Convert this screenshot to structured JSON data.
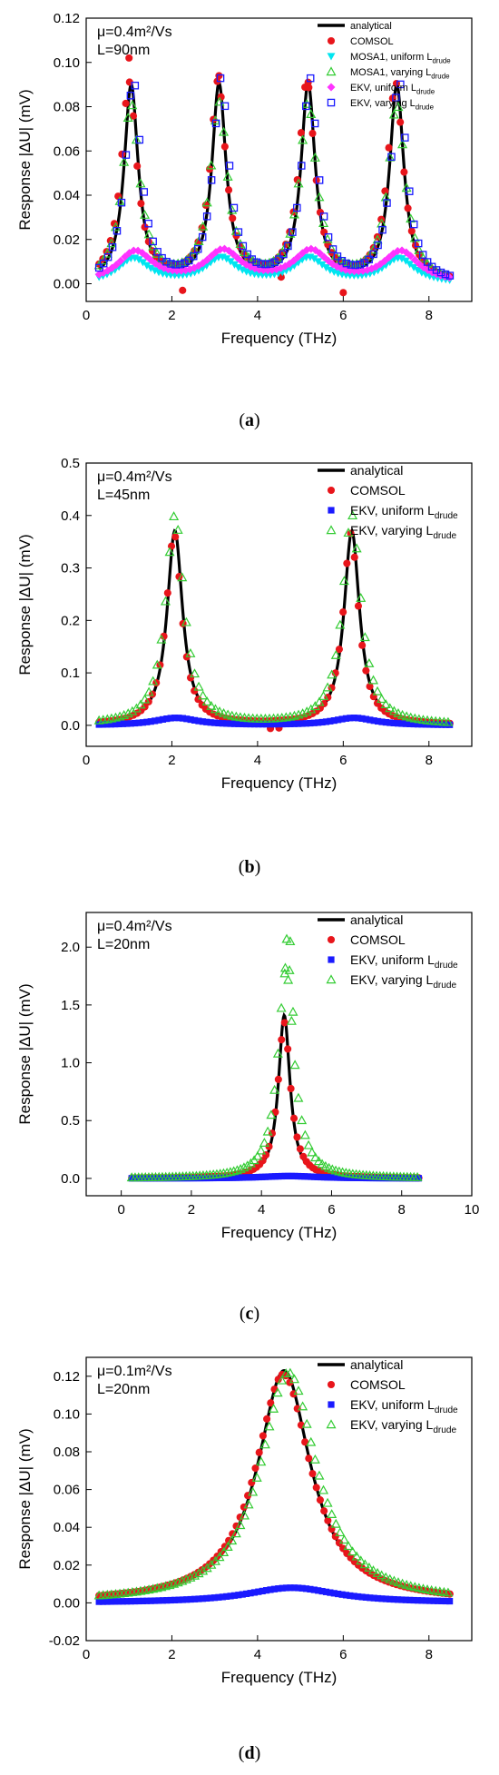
{
  "colors": {
    "analytical": "#000000",
    "comsol": "#e8151b",
    "mosa1_uniform": "#00e5f0",
    "mosa1_varying": "#33cc33",
    "ekv_uniform_a": "#ff33ff",
    "ekv_varying_a": "#1a1aff",
    "ekv_uniform": "#1a1aff",
    "ekv_varying": "#33cc33"
  },
  "chart_data": [
    {
      "id": "a",
      "type": "scatter",
      "caption_open": "(",
      "caption_letter": "a",
      "caption_close": ")",
      "params_line1": "μ=0.4m²/Vs",
      "params_line2": "L=90nm",
      "xlabel": "Frequency (THz)",
      "ylabel": "Response |ΔU| (mV)",
      "xlim": [
        0,
        9
      ],
      "ylim": [
        -0.008,
        0.12
      ],
      "xticks": [
        0,
        2,
        4,
        6,
        8
      ],
      "yticks": [
        0.0,
        0.02,
        0.04,
        0.06,
        0.08,
        0.1,
        0.12
      ],
      "ytick_decimals": 2,
      "grid": false,
      "legend_position": "top-right",
      "legend": [
        {
          "label": "analytical",
          "sub": "",
          "marker": "line",
          "color": "#000000"
        },
        {
          "label": "COMSOL",
          "sub": "",
          "marker": "circle",
          "color": "#e8151b"
        },
        {
          "label": "MOSA1, uniform L",
          "sub": "drude",
          "marker": "triangle-down",
          "color": "#00e5f0"
        },
        {
          "label": "MOSA1, varying L",
          "sub": "drude",
          "marker": "triangle-open",
          "color": "#33cc33"
        },
        {
          "label": "EKV, uniform L",
          "sub": "drude",
          "marker": "diamond",
          "color": "#ff33ff"
        },
        {
          "label": "EKV, varying L",
          "sub": "drude",
          "marker": "square-open",
          "color": "#1a1aff"
        }
      ],
      "series": [
        {
          "name": "analytical",
          "marker": "line",
          "color": "#000000",
          "peaks": [
            1.05,
            3.1,
            5.18,
            7.25
          ],
          "height": 0.089,
          "width": 0.2,
          "x": [
            0.3,
            8.5
          ]
        },
        {
          "name": "COMSOL",
          "marker": "circle",
          "color": "#e8151b",
          "peaks": [
            1.0,
            3.08,
            5.15,
            7.22
          ],
          "height": 0.09,
          "width": 0.22,
          "x": [
            0.3,
            8.5
          ],
          "extra": [
            [
              1.0,
              0.102
            ],
            [
              3.1,
              0.094
            ],
            [
              5.18,
              0.091
            ],
            [
              2.1,
              0.005
            ],
            [
              2.25,
              -0.003
            ],
            [
              6.0,
              -0.004
            ],
            [
              4.55,
              0.003
            ]
          ]
        },
        {
          "name": "MOSA1, uniform L drude",
          "marker": "triangle-down",
          "color": "#00e5f0",
          "peaks": [
            1.1,
            3.15,
            5.2,
            7.3
          ],
          "height": 0.011,
          "width": 0.45,
          "x": [
            0.3,
            8.5
          ]
        },
        {
          "name": "MOSA1, varying L drude",
          "marker": "triangle-open",
          "color": "#33cc33",
          "peaks": [
            1.05,
            3.1,
            5.18,
            7.25
          ],
          "height": 0.08,
          "width": 0.24,
          "x": [
            0.3,
            8.5
          ]
        },
        {
          "name": "EKV, uniform L drude",
          "marker": "diamond",
          "color": "#ff33ff",
          "peaks": [
            1.15,
            3.2,
            5.25,
            7.35
          ],
          "height": 0.014,
          "width": 0.5,
          "x": [
            0.3,
            8.5
          ]
        },
        {
          "name": "EKV, varying L drude",
          "marker": "square-open",
          "color": "#1a1aff",
          "peaks": [
            1.1,
            3.15,
            5.22,
            7.3
          ],
          "height": 0.091,
          "width": 0.22,
          "x": [
            0.3,
            8.5
          ]
        }
      ]
    },
    {
      "id": "b",
      "type": "scatter",
      "caption_open": "(",
      "caption_letter": "b",
      "caption_close": ")",
      "params_line1": "μ=0.4m²/Vs",
      "params_line2": "L=45nm",
      "xlabel": "Frequency (THz)",
      "ylabel": "Response |ΔU| (mV)",
      "xlim": [
        0,
        9
      ],
      "ylim": [
        -0.04,
        0.5
      ],
      "xticks": [
        0,
        2,
        4,
        6,
        8
      ],
      "yticks": [
        0.0,
        0.1,
        0.2,
        0.3,
        0.4,
        0.5
      ],
      "ytick_decimals": 1,
      "grid": false,
      "legend_position": "top-right",
      "legend": [
        {
          "label": "analytical",
          "sub": "",
          "marker": "line",
          "color": "#000000"
        },
        {
          "label": "COMSOL",
          "sub": "",
          "marker": "circle",
          "color": "#e8151b"
        },
        {
          "label": "EKV, uniform L",
          "sub": "drude",
          "marker": "square",
          "color": "#1a1aff"
        },
        {
          "label": "EKV, varying L",
          "sub": "drude",
          "marker": "triangle-open",
          "color": "#33cc33"
        }
      ],
      "series": [
        {
          "name": "analytical",
          "marker": "line",
          "color": "#000000",
          "peaks": [
            2.07,
            6.2
          ],
          "height": 0.37,
          "width": 0.22,
          "x": [
            0.3,
            8.5
          ]
        },
        {
          "name": "COMSOL",
          "marker": "circle",
          "color": "#e8151b",
          "peaks": [
            2.05,
            6.18
          ],
          "height": 0.365,
          "width": 0.22,
          "x": [
            0.3,
            8.5
          ],
          "extra": [
            [
              4.3,
              -0.006
            ],
            [
              4.5,
              -0.005
            ]
          ]
        },
        {
          "name": "EKV, uniform L drude",
          "marker": "square",
          "color": "#1a1aff",
          "peaks": [
            2.1,
            6.25
          ],
          "height": 0.014,
          "width": 0.6,
          "x": [
            0.3,
            8.5
          ]
        },
        {
          "name": "EKV, varying L drude",
          "marker": "triangle-open",
          "color": "#33cc33",
          "peaks": [
            2.07,
            6.2
          ],
          "height": 0.4,
          "width": 0.26,
          "x": [
            0.3,
            8.5
          ]
        }
      ]
    },
    {
      "id": "c",
      "type": "scatter",
      "caption_open": "(",
      "caption_letter": "c",
      "caption_close": ")",
      "params_line1": "μ=0.4m²/Vs",
      "params_line2": "L=20nm",
      "xlabel": "Frequency (THz)",
      "ylabel": "Response |ΔU| (mV)",
      "xlim": [
        -1,
        10
      ],
      "ylim": [
        -0.15,
        2.3
      ],
      "xticks": [
        0,
        2,
        4,
        6,
        8,
        10
      ],
      "yticks": [
        0.0,
        0.5,
        1.0,
        1.5,
        2.0
      ],
      "ytick_decimals": 1,
      "grid": false,
      "legend_position": "top-right",
      "legend": [
        {
          "label": "analytical",
          "sub": "",
          "marker": "line",
          "color": "#000000"
        },
        {
          "label": "COMSOL",
          "sub": "",
          "marker": "circle",
          "color": "#e8151b"
        },
        {
          "label": "EKV, uniform L",
          "sub": "drude",
          "marker": "square",
          "color": "#1a1aff"
        },
        {
          "label": "EKV, varying L",
          "sub": "drude",
          "marker": "triangle-open",
          "color": "#33cc33"
        }
      ],
      "series": [
        {
          "name": "analytical",
          "marker": "line",
          "color": "#000000",
          "peaks": [
            4.65
          ],
          "height": 1.41,
          "width": 0.2,
          "x": [
            0.3,
            8.5
          ]
        },
        {
          "name": "COMSOL",
          "marker": "circle",
          "color": "#e8151b",
          "peaks": [
            4.65
          ],
          "height": 1.35,
          "width": 0.22,
          "x": [
            0.3,
            8.5
          ]
        },
        {
          "name": "EKV, uniform L drude",
          "marker": "square",
          "color": "#1a1aff",
          "peaks": [
            4.8
          ],
          "height": 0.02,
          "width": 1.0,
          "x": [
            0.3,
            8.5
          ]
        },
        {
          "name": "EKV, varying L drude",
          "marker": "triangle-open",
          "color": "#33cc33",
          "peaks": [
            4.7
          ],
          "height": 1.8,
          "width": 0.28,
          "x": [
            0.3,
            8.5
          ],
          "extra": [
            [
              4.72,
              2.07
            ],
            [
              4.82,
              2.05
            ],
            [
              4.68,
              1.82
            ],
            [
              4.8,
              1.8
            ],
            [
              4.9,
              1.44
            ]
          ]
        }
      ]
    },
    {
      "id": "d",
      "type": "scatter",
      "caption_open": "(",
      "caption_letter": "d",
      "caption_close": ")",
      "params_line1": "μ=0.1m²/Vs",
      "params_line2": "L=20nm",
      "xlabel": "Frequency (THz)",
      "ylabel": "Response |ΔU| (mV)",
      "xlim": [
        0,
        9
      ],
      "ylim": [
        -0.02,
        0.13
      ],
      "xticks": [
        0,
        2,
        4,
        6,
        8
      ],
      "yticks": [
        -0.02,
        0.0,
        0.02,
        0.04,
        0.06,
        0.08,
        0.1,
        0.12
      ],
      "ytick_decimals": 2,
      "grid": false,
      "legend_position": "top-right",
      "legend": [
        {
          "label": "analytical",
          "sub": "",
          "marker": "line",
          "color": "#000000"
        },
        {
          "label": "COMSOL",
          "sub": "",
          "marker": "circle",
          "color": "#e8151b"
        },
        {
          "label": "EKV, uniform L",
          "sub": "drude",
          "marker": "square",
          "color": "#1a1aff"
        },
        {
          "label": "EKV, varying L",
          "sub": "drude",
          "marker": "triangle-open",
          "color": "#33cc33"
        }
      ],
      "series": [
        {
          "name": "analytical",
          "marker": "line",
          "color": "#000000",
          "peaks": [
            4.62
          ],
          "height": 0.123,
          "width": 0.75,
          "x": [
            0.3,
            8.5
          ]
        },
        {
          "name": "COMSOL",
          "marker": "circle",
          "color": "#e8151b",
          "peaks": [
            4.6
          ],
          "height": 0.121,
          "width": 0.78,
          "x": [
            0.3,
            8.5
          ]
        },
        {
          "name": "EKV, uniform L drude",
          "marker": "square",
          "color": "#1a1aff",
          "peaks": [
            4.8
          ],
          "height": 0.008,
          "width": 1.3,
          "x": [
            0.3,
            8.5
          ]
        },
        {
          "name": "EKV, varying L drude",
          "marker": "triangle-open",
          "color": "#33cc33",
          "peaks": [
            4.72
          ],
          "height": 0.122,
          "width": 0.8,
          "x": [
            0.3,
            8.5
          ]
        }
      ]
    }
  ]
}
